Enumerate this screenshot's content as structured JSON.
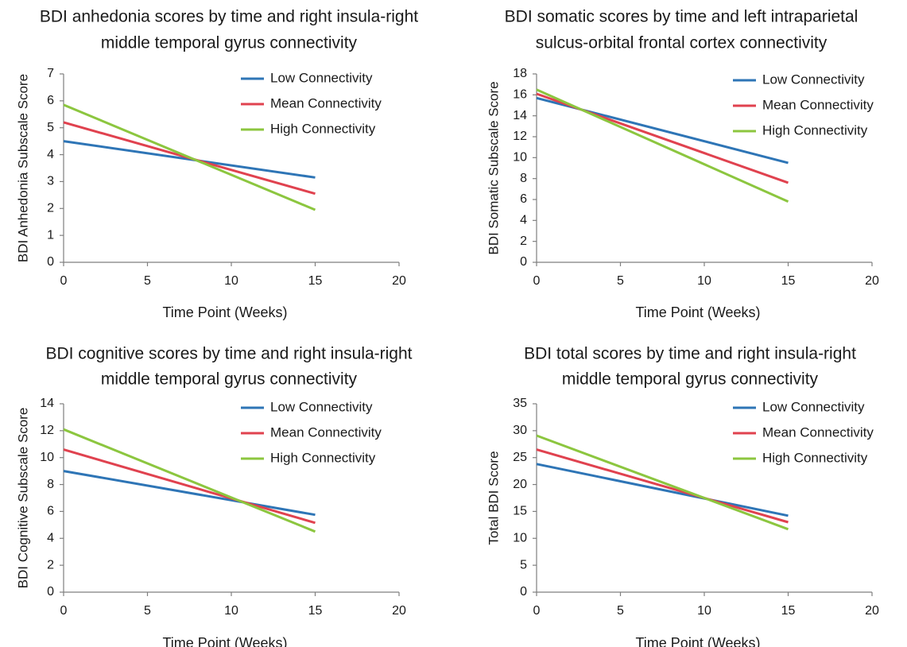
{
  "chart_data": [
    {
      "type": "line",
      "title_lines": [
        "BDI anhedonia scores by time and right insula-right",
        "middle temporal gyrus connectivity"
      ],
      "xlabel": "Time Point (Weeks)",
      "ylabel": "BDI Anhedonia Subscale Score",
      "xlim": [
        0,
        20
      ],
      "ylim": [
        0,
        7
      ],
      "xticks": [
        0,
        5,
        10,
        15,
        20
      ],
      "yticks": [
        0,
        1,
        2,
        3,
        4,
        5,
        6,
        7
      ],
      "grid": false,
      "legend_position": "top-right",
      "series": [
        {
          "name": "Low Connectivity",
          "color": "#2e75b6",
          "x": [
            0,
            15
          ],
          "y": [
            4.5,
            3.15
          ]
        },
        {
          "name": "Mean Connectivity",
          "color": "#e0424f",
          "x": [
            0,
            15
          ],
          "y": [
            5.2,
            2.55
          ]
        },
        {
          "name": "High Connectivity",
          "color": "#8cc63f",
          "x": [
            0,
            15
          ],
          "y": [
            5.85,
            1.95
          ]
        }
      ]
    },
    {
      "type": "line",
      "title_lines": [
        "BDI somatic scores by time and left intraparietal",
        "sulcus-orbital frontal cortex connectivity"
      ],
      "xlabel": "Time Point (Weeks)",
      "ylabel": "BDI Somatic Subscale Score",
      "xlim": [
        0,
        20
      ],
      "ylim": [
        0,
        18
      ],
      "xticks": [
        0,
        5,
        10,
        15,
        20
      ],
      "yticks": [
        0,
        2,
        4,
        6,
        8,
        10,
        12,
        14,
        16,
        18
      ],
      "grid": false,
      "legend_position": "top-right",
      "series": [
        {
          "name": "Low Connectivity",
          "color": "#2e75b6",
          "x": [
            0,
            15
          ],
          "y": [
            15.7,
            9.5
          ]
        },
        {
          "name": "Mean Connectivity",
          "color": "#e0424f",
          "x": [
            0,
            15
          ],
          "y": [
            16.1,
            7.6
          ]
        },
        {
          "name": "High Connectivity",
          "color": "#8cc63f",
          "x": [
            0,
            15
          ],
          "y": [
            16.5,
            5.8
          ]
        }
      ]
    },
    {
      "type": "line",
      "title_lines": [
        "BDI cognitive scores by time and right insula-right",
        "middle temporal gyrus connectivity"
      ],
      "xlabel": "Time Point (Weeks)",
      "ylabel": "BDI Cognitive Subscale Score",
      "xlim": [
        0,
        20
      ],
      "ylim": [
        0,
        14
      ],
      "xticks": [
        0,
        5,
        10,
        15,
        20
      ],
      "yticks": [
        0,
        2,
        4,
        6,
        8,
        10,
        12,
        14
      ],
      "grid": false,
      "legend_position": "top-right",
      "series": [
        {
          "name": "Low Connectivity",
          "color": "#2e75b6",
          "x": [
            0,
            15
          ],
          "y": [
            9.0,
            5.75
          ]
        },
        {
          "name": "Mean Connectivity",
          "color": "#e0424f",
          "x": [
            0,
            15
          ],
          "y": [
            10.6,
            5.15
          ]
        },
        {
          "name": "High Connectivity",
          "color": "#8cc63f",
          "x": [
            0,
            15
          ],
          "y": [
            12.1,
            4.5
          ]
        }
      ]
    },
    {
      "type": "line",
      "title_lines": [
        "BDI total scores by time and right insula-right",
        "middle temporal gyrus connectivity"
      ],
      "xlabel": "Time Point (Weeks)",
      "ylabel": "Total BDI Score",
      "xlim": [
        0,
        20
      ],
      "ylim": [
        0,
        35
      ],
      "xticks": [
        0,
        5,
        10,
        15,
        20
      ],
      "yticks": [
        0,
        5,
        10,
        15,
        20,
        25,
        30,
        35
      ],
      "grid": false,
      "legend_position": "top-right",
      "series": [
        {
          "name": "Low Connectivity",
          "color": "#2e75b6",
          "x": [
            0,
            15
          ],
          "y": [
            23.8,
            14.2
          ]
        },
        {
          "name": "Mean Connectivity",
          "color": "#e0424f",
          "x": [
            0,
            15
          ],
          "y": [
            26.5,
            13.0
          ]
        },
        {
          "name": "High Connectivity",
          "color": "#8cc63f",
          "x": [
            0,
            15
          ],
          "y": [
            29.1,
            11.7
          ]
        }
      ]
    }
  ]
}
